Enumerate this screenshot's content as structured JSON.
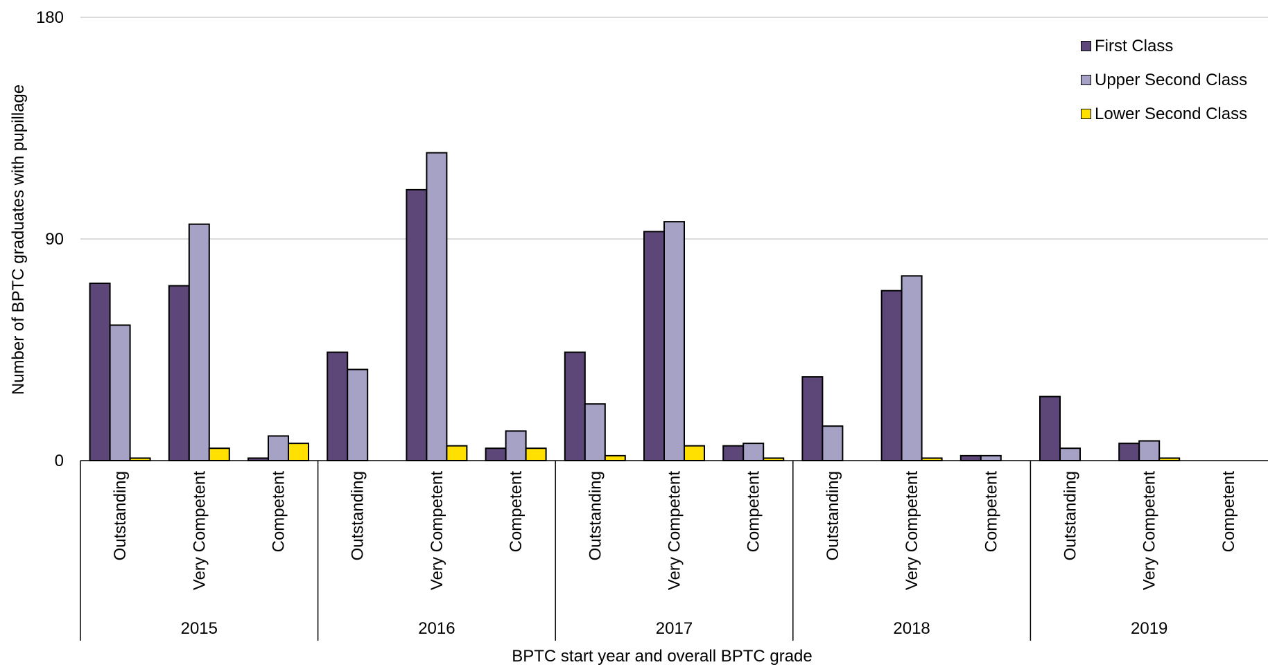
{
  "chart_data": {
    "type": "bar",
    "title": "",
    "xlabel": "BPTC start year and overall BPTC grade",
    "ylabel": "Number of BPTC graduates with pupillage",
    "ylim": [
      0,
      180
    ],
    "yticks": [
      0,
      90,
      180
    ],
    "grid": true,
    "legend_position": "top-right",
    "groups": [
      {
        "label": "2015",
        "categories": [
          "Outstanding",
          "Very Competent",
          "Competent"
        ]
      },
      {
        "label": "2016",
        "categories": [
          "Outstanding",
          "Very Competent",
          "Competent"
        ]
      },
      {
        "label": "2017",
        "categories": [
          "Outstanding",
          "Very Competent",
          "Competent"
        ]
      },
      {
        "label": "2018",
        "categories": [
          "Outstanding",
          "Very Competent",
          "Competent"
        ]
      },
      {
        "label": "2019",
        "categories": [
          "Outstanding",
          "Very Competent",
          "Competent"
        ]
      }
    ],
    "series": [
      {
        "name": "First Class",
        "color": "#5d4778",
        "values": [
          72,
          71,
          1,
          44,
          110,
          5,
          44,
          93,
          6,
          34,
          69,
          2,
          26,
          7,
          0
        ]
      },
      {
        "name": "Upper Second Class",
        "color": "#a6a2c6",
        "values": [
          55,
          96,
          10,
          37,
          125,
          12,
          23,
          97,
          7,
          14,
          75,
          2,
          5,
          8,
          0
        ]
      },
      {
        "name": "Lower Second Class",
        "color": "#ffe000",
        "values": [
          1,
          5,
          7,
          0,
          6,
          5,
          2,
          6,
          1,
          0,
          1,
          0,
          0,
          1,
          0
        ]
      }
    ]
  }
}
